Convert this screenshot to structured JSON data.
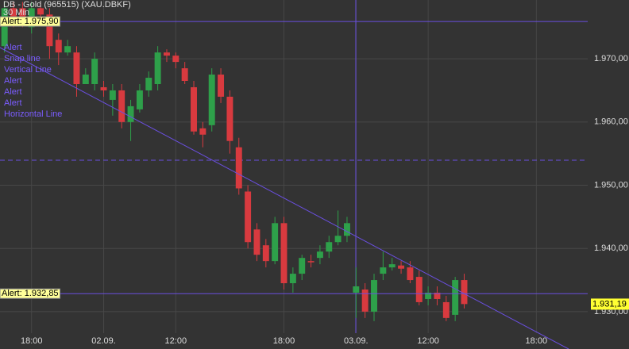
{
  "chart_data": {
    "type": "candlestick",
    "title": "DB - Gold (965515) (XAU.DBKF)",
    "subtitle": "30 Min",
    "x": [
      0,
      1,
      2,
      3,
      4,
      5,
      6,
      7,
      8,
      9,
      10,
      11,
      12,
      13,
      14,
      15,
      16,
      17,
      18,
      19,
      20,
      21,
      22,
      23,
      24,
      25,
      26,
      27,
      28,
      29,
      30,
      31,
      32,
      33,
      34,
      35,
      36,
      37,
      38,
      39,
      40,
      41,
      42,
      43,
      44,
      45,
      46,
      47,
      48,
      49,
      50,
      51
    ],
    "open": [
      1972,
      1978,
      1978,
      1975,
      1978,
      1977,
      1973,
      1971,
      1971,
      1966,
      1966,
      1965.5,
      1963.5,
      1965,
      1960,
      1962,
      1965,
      1966,
      1971,
      1970.5,
      1968.5,
      1965.5,
      1959,
      1959.5,
      1967.5,
      1964,
      1956,
      1949,
      1943,
      1940.5,
      1938,
      1944,
      1934.5,
      1936,
      1938,
      1938.5,
      1939.5,
      1941,
      1942,
      1933,
      1933.5,
      1930,
      1936,
      1937,
      1937.3,
      1937,
      1935.5,
      1932,
      1933,
      1931.5,
      1929.5,
      1935
    ],
    "high": [
      1979,
      1979,
      1979,
      1979,
      1979,
      1978,
      1974,
      1973,
      1972,
      1968.5,
      1971,
      1966.5,
      1966,
      1966,
      1963.5,
      1966,
      1968,
      1972,
      1971.5,
      1971,
      1969.5,
      1966.5,
      1960,
      1968.5,
      1968.5,
      1965,
      1957.5,
      1950,
      1944,
      1941.5,
      1945,
      1945,
      1937,
      1939,
      1939,
      1940.5,
      1942,
      1946,
      1945,
      1937,
      1934.5,
      1936,
      1939.5,
      1938.5,
      1938,
      1938,
      1936.5,
      1934,
      1934,
      1932.5,
      1935.5,
      1936
    ],
    "low": [
      1971,
      1975,
      1975,
      1974,
      1976,
      1970,
      1969,
      1970.5,
      1964,
      1966,
      1965,
      1964,
      1961,
      1959,
      1957,
      1961.5,
      1964,
      1965,
      1969.5,
      1968.5,
      1966,
      1958,
      1956,
      1958.5,
      1963,
      1955,
      1948.5,
      1940,
      1938,
      1937,
      1937.5,
      1933.5,
      1933,
      1935,
      1937,
      1937.5,
      1938.5,
      1940.5,
      1941,
      1929,
      1929,
      1928.5,
      1935,
      1936.5,
      1936,
      1934.5,
      1931,
      1931,
      1931,
      1928.5,
      1928.5,
      1930.5
    ],
    "close": [
      1978,
      1976,
      1976,
      1978,
      1977,
      1972,
      1971,
      1972,
      1966,
      1967.5,
      1970,
      1965,
      1965,
      1960,
      1962.5,
      1965,
      1967,
      1971,
      1970.5,
      1969.5,
      1966.5,
      1958.5,
      1958,
      1967.5,
      1964,
      1957,
      1949.5,
      1941,
      1939,
      1938,
      1944,
      1934.5,
      1936,
      1938.5,
      1937.8,
      1939.5,
      1941,
      1942,
      1944,
      1934,
      1930,
      1935,
      1937,
      1937.5,
      1936.8,
      1935,
      1931.5,
      1933,
      1932,
      1929,
      1935,
      1931.2
    ],
    "up_color": "#2ea04a",
    "down_color": "#d83a3f",
    "xlim": [
      -0.5,
      64.7
    ],
    "xticks": [
      {
        "value": 3,
        "label": "18:00"
      },
      {
        "value": 11,
        "label": "02.09."
      },
      {
        "value": 19,
        "label": "12:00"
      },
      {
        "value": 31,
        "label": "18:00"
      },
      {
        "value": 39,
        "label": "03.09."
      },
      {
        "value": 47,
        "label": "12:00"
      },
      {
        "value": 59,
        "label": "18:00"
      }
    ],
    "ylim": [
      1926.6,
      1979.3
    ],
    "yticks": [
      {
        "value": 1930,
        "label": "1.930,00"
      },
      {
        "value": 1940,
        "label": "1.940,00"
      },
      {
        "value": 1950,
        "label": "1.950,00"
      },
      {
        "value": 1960,
        "label": "1.960,00"
      },
      {
        "value": 1970,
        "label": "1.970,00"
      }
    ],
    "grid": true,
    "alerts": [
      {
        "value": 1975.9,
        "label": "Alert: 1.975,90"
      },
      {
        "value": 1932.85,
        "label": "Alert: 1.932,85"
      }
    ],
    "last_price": {
      "value": 1931.19,
      "label": "1.931,19"
    },
    "objects": [
      "Alert",
      "Snap line",
      "Vertical Line",
      "Alert",
      "Alert",
      "Alert",
      "Horizontal Line"
    ]
  }
}
